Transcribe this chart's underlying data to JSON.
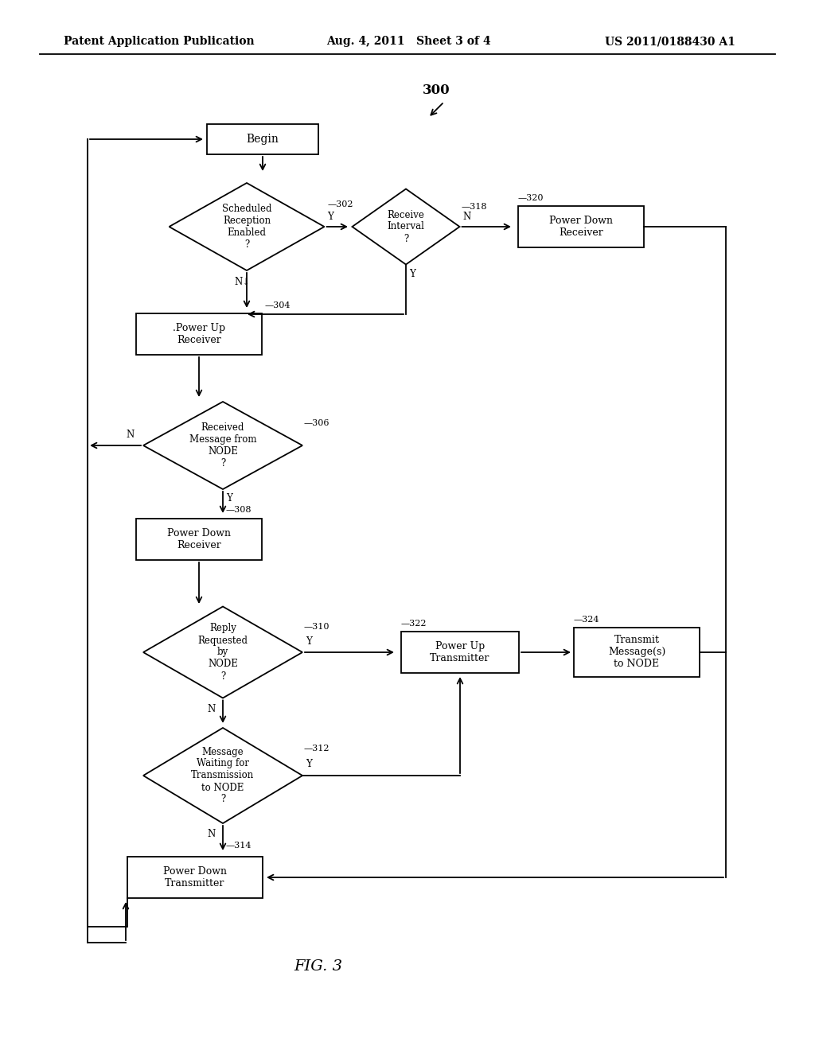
{
  "bg_color": "#ffffff",
  "header_left": "Patent Application Publication",
  "header_mid": "Aug. 4, 2011   Sheet 3 of 4",
  "header_right": "US 2011/0188430 A1",
  "fig_label": "FIG. 3",
  "line_color": "#000000",
  "text_color": "#000000"
}
